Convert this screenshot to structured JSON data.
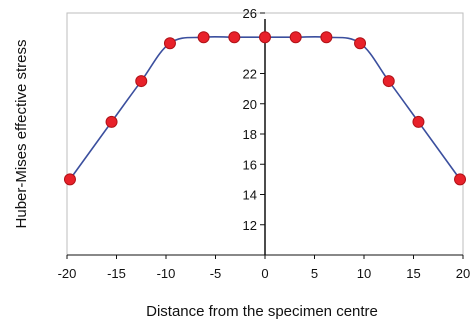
{
  "chart_data": {
    "type": "line",
    "title": "",
    "xlabel": "Distance from the specimen centre",
    "ylabel": "Huber-Mises effective stress",
    "xlim": [
      -20,
      20
    ],
    "ylim": [
      10,
      26
    ],
    "xticks": [
      -20,
      -15,
      -10,
      -5,
      0,
      5,
      10,
      15,
      20
    ],
    "yticks": [
      12,
      14,
      16,
      18,
      20,
      22,
      26
    ],
    "grid": false,
    "legend": "none",
    "colors": {
      "line": "#3b4f9e",
      "marker": "#e8212a",
      "marker_edge": "#b01217",
      "frame": "#bdbdbd",
      "axis": "#111111"
    },
    "series": [
      {
        "x": [
          -19.7,
          -15.5,
          -12.5,
          -9.6,
          -6.2,
          -3.1,
          0,
          3.1,
          6.2,
          9.6,
          12.5,
          15.5,
          19.7
        ],
        "y": [
          15.0,
          18.8,
          21.5,
          24.0,
          24.4,
          24.4,
          24.4,
          24.4,
          24.4,
          24.0,
          21.5,
          18.8,
          15.0
        ]
      }
    ]
  }
}
